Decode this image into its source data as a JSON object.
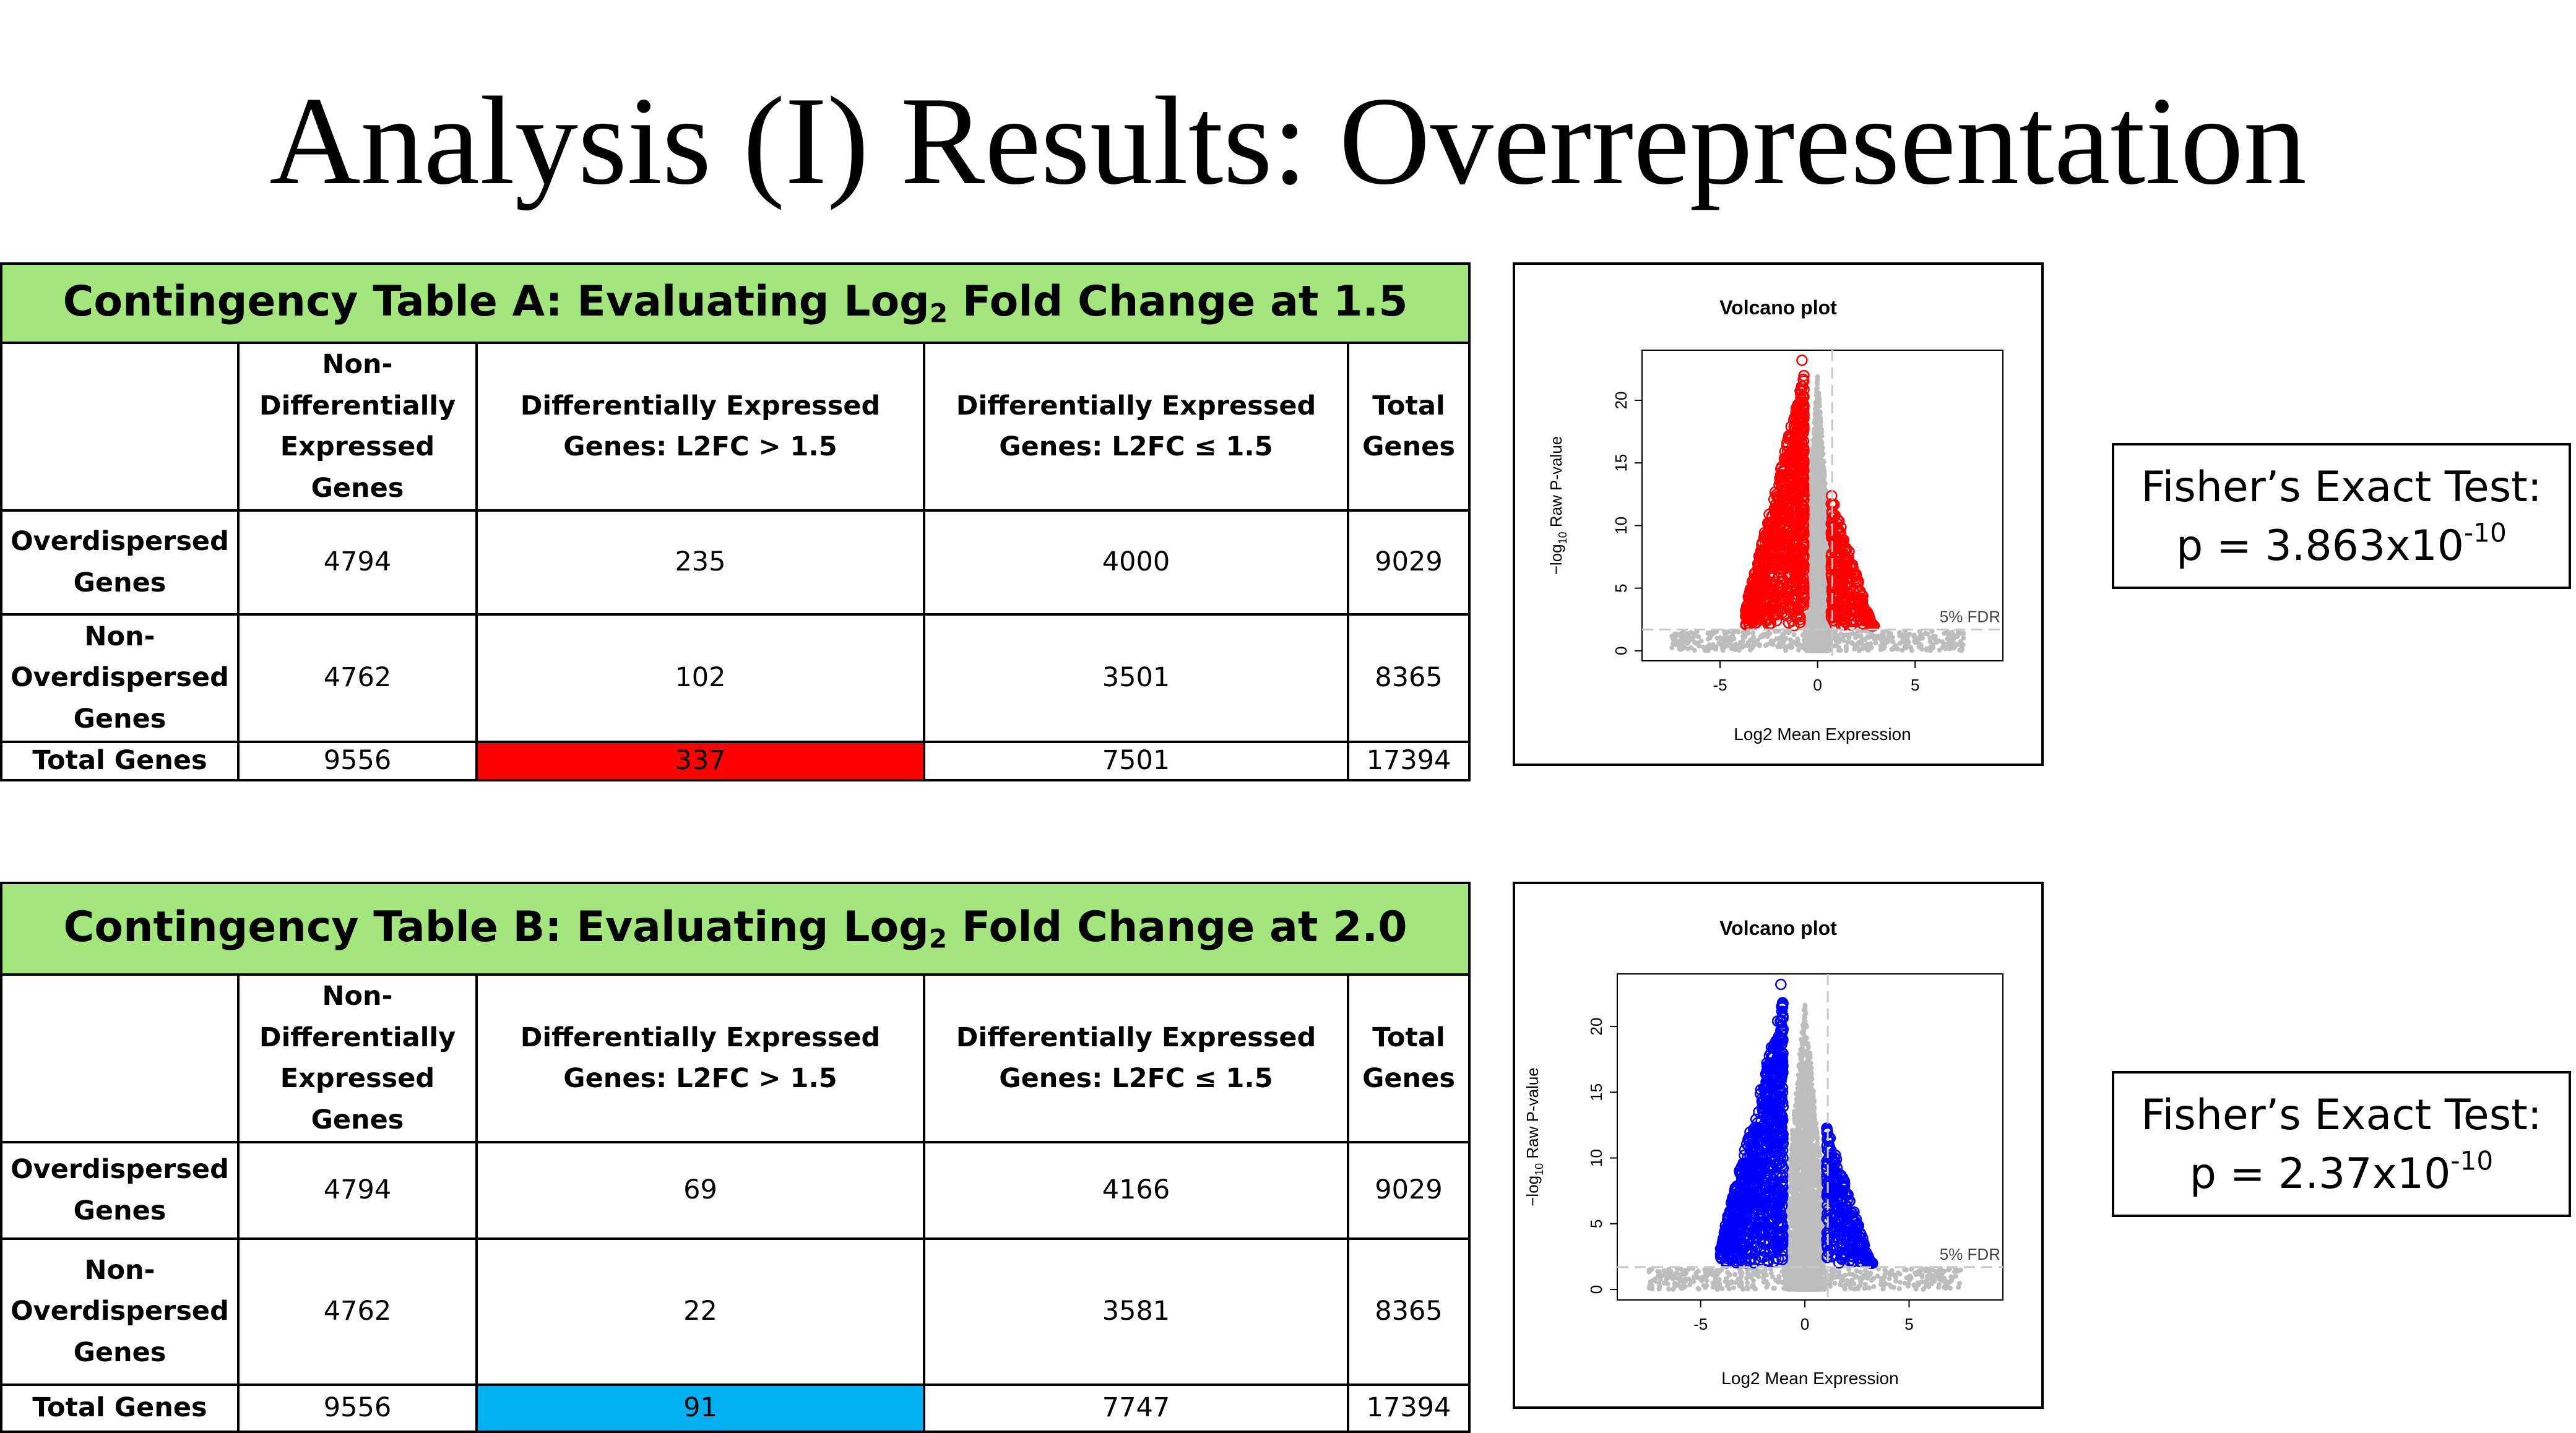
{
  "title": "Analysis (I) Results: Overrepresentation",
  "tables": [
    {
      "title_prefix": "Contingency Table A: Evaluating Log",
      "title_sub": "2",
      "title_suffix": " Fold Change at 1.5",
      "headers": [
        "",
        "Non-Differentially Expressed Genes",
        "Differentially Expressed Genes: L2FC > 1.5",
        "Differentially Expressed Genes: L2FC ≤ 1.5",
        "Total Genes"
      ],
      "rows": [
        {
          "label": "Overdispersed Genes",
          "values": [
            "4794",
            "235",
            "4000",
            "9029"
          ]
        },
        {
          "label": "Non-Overdispersed Genes",
          "values": [
            "4762",
            "102",
            "3501",
            "8365"
          ]
        },
        {
          "label": "Total Genes",
          "values": [
            "9556",
            "337",
            "7501",
            "17394"
          ]
        }
      ],
      "highlight_color": "#ff0000"
    },
    {
      "title_prefix": "Contingency Table B: Evaluating Log",
      "title_sub": "2",
      "title_suffix": " Fold Change at 2.0",
      "headers": [
        "",
        "Non-Differentially Expressed Genes",
        "Differentially Expressed Genes: L2FC > 1.5",
        "Differentially Expressed Genes: L2FC ≤ 1.5",
        "Total Genes"
      ],
      "rows": [
        {
          "label": "Overdispersed Genes",
          "values": [
            "4794",
            "69",
            "4166",
            "9029"
          ]
        },
        {
          "label": "Non-Overdispersed Genes",
          "values": [
            "4762",
            "22",
            "3581",
            "8365"
          ]
        },
        {
          "label": "Total Genes",
          "values": [
            "9556",
            "91",
            "7747",
            "17394"
          ]
        }
      ],
      "highlight_color": "#00b0f0"
    }
  ],
  "plots": [
    {
      "title": "Volcano plot",
      "xlabel": "Log2 Mean Expression",
      "ylabel_prefix": "−log",
      "ylabel_sub": "10",
      "ylabel_suffix": " Raw P-value",
      "x_ticks": [
        "-5",
        "0",
        "5"
      ],
      "y_ticks": [
        "0",
        "5",
        "10",
        "15",
        "20"
      ],
      "fdr_label": "5% FDR",
      "highlight_color": "#ff0000"
    },
    {
      "title": "Volcano plot",
      "xlabel": "Log2 Mean Expression",
      "ylabel_prefix": "−log",
      "ylabel_sub": "10",
      "ylabel_suffix": " Raw P-value",
      "x_ticks": [
        "-5",
        "0",
        "5"
      ],
      "y_ticks": [
        "0",
        "5",
        "10",
        "15",
        "20"
      ],
      "fdr_label": "5% FDR",
      "highlight_color": "#0000ff"
    }
  ],
  "fisher": [
    {
      "line1": "Fisher’s Exact Test:",
      "p_prefix": "p = 3.863x10",
      "p_exp": "-10"
    },
    {
      "line1": "Fisher’s Exact Test:",
      "p_prefix": "p = 2.37x10",
      "p_exp": "-10"
    }
  ]
}
